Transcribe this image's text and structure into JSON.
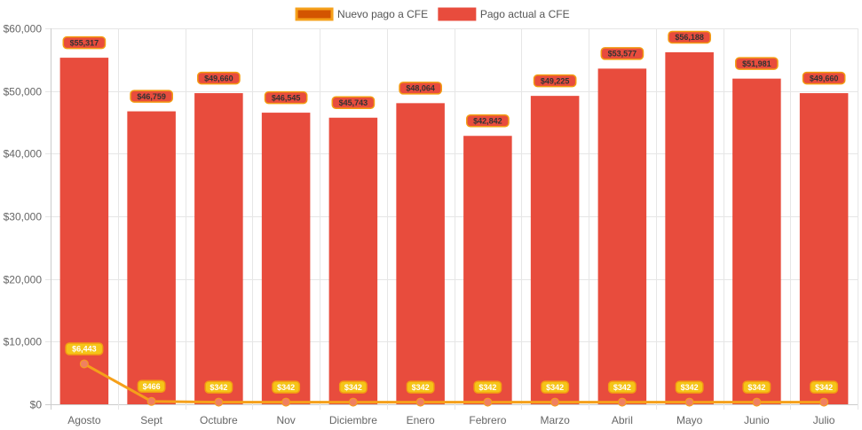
{
  "chart_data": {
    "type": "bar",
    "categories": [
      "Agosto",
      "Sept",
      "Octubre",
      "Nov",
      "Diciembre",
      "Enero",
      "Febrero",
      "Marzo",
      "Abril",
      "Mayo",
      "Junio",
      "Julio"
    ],
    "series": [
      {
        "name": "Nuevo pago a CFE",
        "type": "line",
        "color": "#f5a01a",
        "label_bg": "#f5c518",
        "values": [
          6443,
          466,
          342,
          342,
          342,
          342,
          342,
          342,
          342,
          342,
          342,
          342
        ],
        "labels": [
          "$6,443",
          "$466",
          "$342",
          "$342",
          "$342",
          "$342",
          "$342",
          "$342",
          "$342",
          "$342",
          "$342",
          "$342"
        ]
      },
      {
        "name": "Pago actual a CFE",
        "type": "bar",
        "color": "#e84c3d",
        "label_bg": "#e84c3d",
        "values": [
          55317,
          46759,
          49660,
          46545,
          45743,
          48064,
          42842,
          49225,
          53577,
          56188,
          51981,
          49660
        ],
        "labels": [
          "$55,317",
          "$46,759",
          "$49,660",
          "$46,545",
          "$45,743",
          "$48,064",
          "$42,842",
          "$49,225",
          "$53,577",
          "$56,188",
          "$51,981",
          "$49,660"
        ]
      }
    ],
    "ylim": [
      0,
      60000
    ],
    "yticks": [
      0,
      10000,
      20000,
      30000,
      40000,
      50000,
      60000
    ],
    "ytick_labels": [
      "$0",
      "$10,000",
      "$20,000",
      "$30,000",
      "$40,000",
      "$50,000",
      "$60,000"
    ],
    "grid": true,
    "legend_position": "top-center",
    "legend": [
      {
        "name": "Nuevo pago a CFE",
        "fill": "#d35400",
        "border": "#f5a01a"
      },
      {
        "name": "Pago actual a CFE",
        "fill": "#e84c3d",
        "border": "#e84c3d"
      }
    ],
    "label_border_color": "#f39c12",
    "label_text_color_line": "#ffffff",
    "label_text_color_bar": "#333333"
  }
}
